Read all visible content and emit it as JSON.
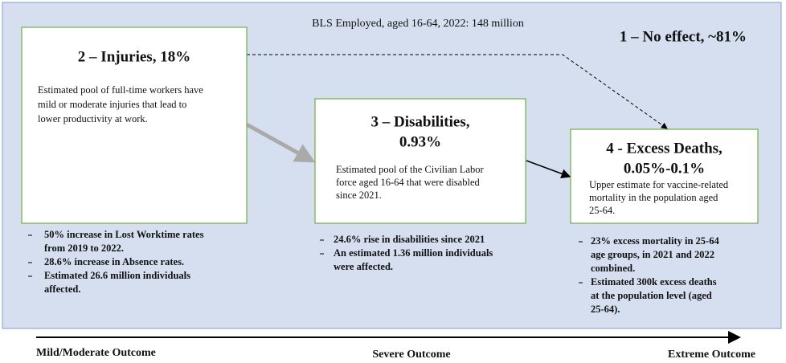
{
  "header": {
    "title": "BLS Employed, aged 16-64, 2022: 148 million",
    "no_effect": "1 – No effect, ~81%"
  },
  "boxes": [
    {
      "title": [
        "2 – Injuries, 18%"
      ],
      "body": [
        "Estimated pool of  full-time workers have",
        "mild or moderate injuries that lead to",
        "lower productivity at work."
      ],
      "bullets": [
        [
          "50% increase in Lost Worktime rates",
          "from 2019 to 2022."
        ],
        [
          "28.6% increase in Absence rates."
        ],
        [
          "Estimated 26.6 million individuals",
          "affected."
        ]
      ]
    },
    {
      "title": [
        "3 – Disabilities,",
        "0.93%"
      ],
      "body": [
        "Estimated pool of the Civilian Labor",
        "force aged 16-64 that were disabled",
        "since 2021."
      ],
      "bullets": [
        [
          "24.6% rise in disabilities since 2021"
        ],
        [
          "An estimated 1.36 million individuals",
          "were affected."
        ]
      ]
    },
    {
      "title": [
        "4 - Excess Deaths,",
        "0.05%-0.1%"
      ],
      "body": [
        "Upper estimate for vaccine-related",
        "mortality in the population aged",
        "25-64."
      ],
      "bullets": [
        [
          "23% excess mortality in 25-64",
          "age groups, in 2021 and 2022",
          "combined."
        ],
        [
          "Estimated 300k excess deaths",
          "at the population level (aged",
          "25-64)."
        ]
      ]
    }
  ],
  "axis": {
    "left": "Mild/Moderate Outcome",
    "center": "Severe Outcome",
    "right": "Extreme Outcome"
  }
}
